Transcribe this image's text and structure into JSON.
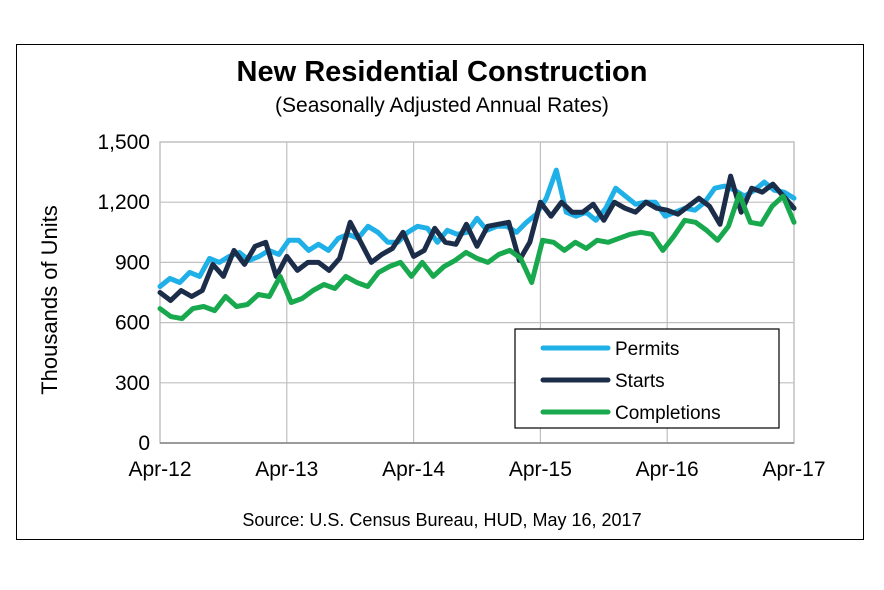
{
  "chart_data": {
    "type": "line",
    "title": "New Residential Construction",
    "subtitle": "(Seasonally Adjusted Annual Rates)",
    "ylabel": "Thousands of Units",
    "xlabel": "",
    "source": "Source:  U.S. Census Bureau, HUD, May 16, 2017",
    "ylim": [
      0,
      1500
    ],
    "yticks": [
      "0",
      "300",
      "600",
      "900",
      "1,200",
      "1,500"
    ],
    "ytick_values": [
      0,
      300,
      600,
      900,
      1200,
      1500
    ],
    "xticks": [
      "Apr-12",
      "Apr-13",
      "Apr-14",
      "Apr-15",
      "Apr-16",
      "Apr-17"
    ],
    "x_start": "Apr-12",
    "x_end": "Apr-17",
    "grid": true,
    "legend_position": "bottom-right",
    "series": [
      {
        "name": "Permits",
        "color": "#1fb0e8",
        "values": [
          780,
          820,
          800,
          850,
          830,
          920,
          900,
          930,
          950,
          910,
          930,
          960,
          940,
          1010,
          1010,
          960,
          990,
          960,
          1020,
          1040,
          1020,
          1080,
          1050,
          1000,
          1000,
          1050,
          1080,
          1070,
          1000,
          1060,
          1040,
          1050,
          1120,
          1060,
          1080,
          1080,
          1050,
          1100,
          1140,
          1220,
          1360,
          1150,
          1130,
          1150,
          1110,
          1170,
          1270,
          1230,
          1190,
          1200,
          1200,
          1130,
          1150,
          1170,
          1160,
          1200,
          1270,
          1280,
          1260,
          1230,
          1260,
          1300,
          1260,
          1250,
          1220
        ]
      },
      {
        "name": "Starts",
        "color": "#1c2d4a",
        "values": [
          750,
          710,
          760,
          730,
          760,
          890,
          830,
          960,
          890,
          980,
          1000,
          830,
          930,
          860,
          900,
          900,
          860,
          920,
          1100,
          1000,
          900,
          940,
          970,
          1050,
          930,
          960,
          1070,
          1000,
          990,
          1090,
          980,
          1080,
          1090,
          1100,
          910,
          1000,
          1200,
          1130,
          1200,
          1150,
          1150,
          1190,
          1110,
          1200,
          1170,
          1150,
          1200,
          1170,
          1160,
          1140,
          1180,
          1220,
          1180,
          1090,
          1330,
          1150,
          1270,
          1250,
          1290,
          1230,
          1170
        ]
      },
      {
        "name": "Completions",
        "color": "#18a84d",
        "values": [
          670,
          630,
          620,
          670,
          680,
          660,
          730,
          680,
          690,
          740,
          730,
          830,
          700,
          720,
          760,
          790,
          770,
          830,
          800,
          780,
          850,
          880,
          900,
          830,
          900,
          830,
          880,
          910,
          950,
          920,
          900,
          940,
          960,
          920,
          800,
          1010,
          1000,
          960,
          1000,
          970,
          1010,
          1000,
          1020,
          1040,
          1050,
          1040,
          960,
          1030,
          1110,
          1100,
          1060,
          1010,
          1080,
          1240,
          1100,
          1090,
          1180,
          1230,
          1100
        ]
      }
    ]
  }
}
